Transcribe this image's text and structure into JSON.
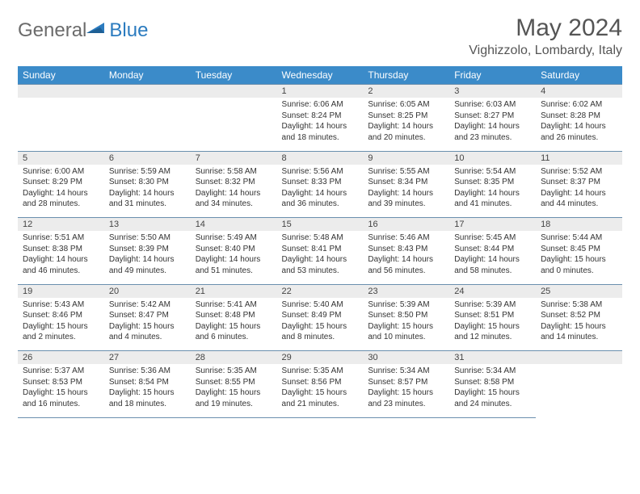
{
  "logo": {
    "general": "General",
    "blue": "Blue"
  },
  "header": {
    "month_title": "May 2024",
    "location": "Vighizzolo, Lombardy, Italy"
  },
  "colors": {
    "header_bg": "#3b8bc9",
    "daynum_bg": "#ececec",
    "border": "#6a8fae",
    "logo_gray": "#6b6b6b",
    "logo_blue": "#2b7bbf"
  },
  "weekdays": [
    "Sunday",
    "Monday",
    "Tuesday",
    "Wednesday",
    "Thursday",
    "Friday",
    "Saturday"
  ],
  "weeks": [
    {
      "nums": [
        "",
        "",
        "",
        "1",
        "2",
        "3",
        "4"
      ],
      "cells": [
        null,
        null,
        null,
        {
          "sunrise": "Sunrise: 6:06 AM",
          "sunset": "Sunset: 8:24 PM",
          "day1": "Daylight: 14 hours",
          "day2": "and 18 minutes."
        },
        {
          "sunrise": "Sunrise: 6:05 AM",
          "sunset": "Sunset: 8:25 PM",
          "day1": "Daylight: 14 hours",
          "day2": "and 20 minutes."
        },
        {
          "sunrise": "Sunrise: 6:03 AM",
          "sunset": "Sunset: 8:27 PM",
          "day1": "Daylight: 14 hours",
          "day2": "and 23 minutes."
        },
        {
          "sunrise": "Sunrise: 6:02 AM",
          "sunset": "Sunset: 8:28 PM",
          "day1": "Daylight: 14 hours",
          "day2": "and 26 minutes."
        }
      ]
    },
    {
      "nums": [
        "5",
        "6",
        "7",
        "8",
        "9",
        "10",
        "11"
      ],
      "cells": [
        {
          "sunrise": "Sunrise: 6:00 AM",
          "sunset": "Sunset: 8:29 PM",
          "day1": "Daylight: 14 hours",
          "day2": "and 28 minutes."
        },
        {
          "sunrise": "Sunrise: 5:59 AM",
          "sunset": "Sunset: 8:30 PM",
          "day1": "Daylight: 14 hours",
          "day2": "and 31 minutes."
        },
        {
          "sunrise": "Sunrise: 5:58 AM",
          "sunset": "Sunset: 8:32 PM",
          "day1": "Daylight: 14 hours",
          "day2": "and 34 minutes."
        },
        {
          "sunrise": "Sunrise: 5:56 AM",
          "sunset": "Sunset: 8:33 PM",
          "day1": "Daylight: 14 hours",
          "day2": "and 36 minutes."
        },
        {
          "sunrise": "Sunrise: 5:55 AM",
          "sunset": "Sunset: 8:34 PM",
          "day1": "Daylight: 14 hours",
          "day2": "and 39 minutes."
        },
        {
          "sunrise": "Sunrise: 5:54 AM",
          "sunset": "Sunset: 8:35 PM",
          "day1": "Daylight: 14 hours",
          "day2": "and 41 minutes."
        },
        {
          "sunrise": "Sunrise: 5:52 AM",
          "sunset": "Sunset: 8:37 PM",
          "day1": "Daylight: 14 hours",
          "day2": "and 44 minutes."
        }
      ]
    },
    {
      "nums": [
        "12",
        "13",
        "14",
        "15",
        "16",
        "17",
        "18"
      ],
      "cells": [
        {
          "sunrise": "Sunrise: 5:51 AM",
          "sunset": "Sunset: 8:38 PM",
          "day1": "Daylight: 14 hours",
          "day2": "and 46 minutes."
        },
        {
          "sunrise": "Sunrise: 5:50 AM",
          "sunset": "Sunset: 8:39 PM",
          "day1": "Daylight: 14 hours",
          "day2": "and 49 minutes."
        },
        {
          "sunrise": "Sunrise: 5:49 AM",
          "sunset": "Sunset: 8:40 PM",
          "day1": "Daylight: 14 hours",
          "day2": "and 51 minutes."
        },
        {
          "sunrise": "Sunrise: 5:48 AM",
          "sunset": "Sunset: 8:41 PM",
          "day1": "Daylight: 14 hours",
          "day2": "and 53 minutes."
        },
        {
          "sunrise": "Sunrise: 5:46 AM",
          "sunset": "Sunset: 8:43 PM",
          "day1": "Daylight: 14 hours",
          "day2": "and 56 minutes."
        },
        {
          "sunrise": "Sunrise: 5:45 AM",
          "sunset": "Sunset: 8:44 PM",
          "day1": "Daylight: 14 hours",
          "day2": "and 58 minutes."
        },
        {
          "sunrise": "Sunrise: 5:44 AM",
          "sunset": "Sunset: 8:45 PM",
          "day1": "Daylight: 15 hours",
          "day2": "and 0 minutes."
        }
      ]
    },
    {
      "nums": [
        "19",
        "20",
        "21",
        "22",
        "23",
        "24",
        "25"
      ],
      "cells": [
        {
          "sunrise": "Sunrise: 5:43 AM",
          "sunset": "Sunset: 8:46 PM",
          "day1": "Daylight: 15 hours",
          "day2": "and 2 minutes."
        },
        {
          "sunrise": "Sunrise: 5:42 AM",
          "sunset": "Sunset: 8:47 PM",
          "day1": "Daylight: 15 hours",
          "day2": "and 4 minutes."
        },
        {
          "sunrise": "Sunrise: 5:41 AM",
          "sunset": "Sunset: 8:48 PM",
          "day1": "Daylight: 15 hours",
          "day2": "and 6 minutes."
        },
        {
          "sunrise": "Sunrise: 5:40 AM",
          "sunset": "Sunset: 8:49 PM",
          "day1": "Daylight: 15 hours",
          "day2": "and 8 minutes."
        },
        {
          "sunrise": "Sunrise: 5:39 AM",
          "sunset": "Sunset: 8:50 PM",
          "day1": "Daylight: 15 hours",
          "day2": "and 10 minutes."
        },
        {
          "sunrise": "Sunrise: 5:39 AM",
          "sunset": "Sunset: 8:51 PM",
          "day1": "Daylight: 15 hours",
          "day2": "and 12 minutes."
        },
        {
          "sunrise": "Sunrise: 5:38 AM",
          "sunset": "Sunset: 8:52 PM",
          "day1": "Daylight: 15 hours",
          "day2": "and 14 minutes."
        }
      ]
    },
    {
      "nums": [
        "26",
        "27",
        "28",
        "29",
        "30",
        "31",
        ""
      ],
      "cells": [
        {
          "sunrise": "Sunrise: 5:37 AM",
          "sunset": "Sunset: 8:53 PM",
          "day1": "Daylight: 15 hours",
          "day2": "and 16 minutes."
        },
        {
          "sunrise": "Sunrise: 5:36 AM",
          "sunset": "Sunset: 8:54 PM",
          "day1": "Daylight: 15 hours",
          "day2": "and 18 minutes."
        },
        {
          "sunrise": "Sunrise: 5:35 AM",
          "sunset": "Sunset: 8:55 PM",
          "day1": "Daylight: 15 hours",
          "day2": "and 19 minutes."
        },
        {
          "sunrise": "Sunrise: 5:35 AM",
          "sunset": "Sunset: 8:56 PM",
          "day1": "Daylight: 15 hours",
          "day2": "and 21 minutes."
        },
        {
          "sunrise": "Sunrise: 5:34 AM",
          "sunset": "Sunset: 8:57 PM",
          "day1": "Daylight: 15 hours",
          "day2": "and 23 minutes."
        },
        {
          "sunrise": "Sunrise: 5:34 AM",
          "sunset": "Sunset: 8:58 PM",
          "day1": "Daylight: 15 hours",
          "day2": "and 24 minutes."
        },
        null
      ]
    }
  ]
}
